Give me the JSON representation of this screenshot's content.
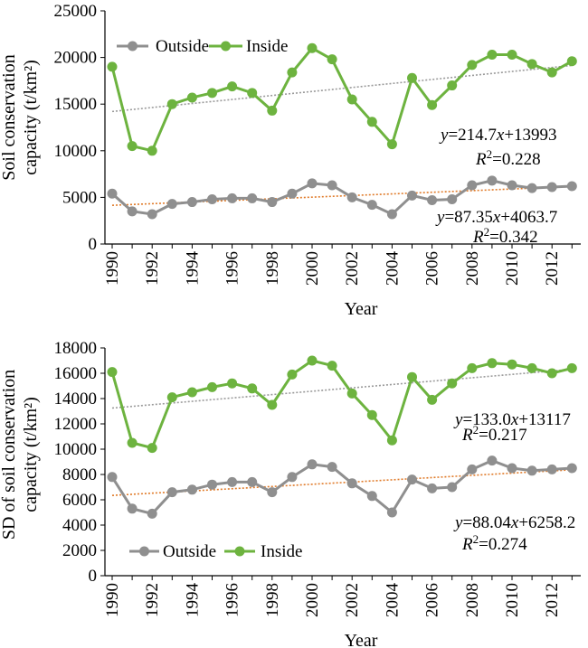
{
  "colors": {
    "outside": "#8f8f8f",
    "inside": "#6db33f",
    "trend_outside": "#e07b2a",
    "trend_inside": "#9a9a9a"
  },
  "chart_data": [
    {
      "type": "line",
      "x": [
        1990,
        1991,
        1992,
        1993,
        1994,
        1995,
        1996,
        1997,
        1998,
        1999,
        2000,
        2001,
        2002,
        2003,
        2004,
        2005,
        2006,
        2007,
        2008,
        2009,
        2010,
        2011,
        2012,
        2013
      ],
      "x_ticks": [
        "1990",
        "1992",
        "1994",
        "1996",
        "1998",
        "2000",
        "2002",
        "2004",
        "2006",
        "2008",
        "2010",
        "2012"
      ],
      "xlabel": "Year",
      "ylabel": [
        "Soil conservation",
        "capacity (t/km²)"
      ],
      "ylim": [
        0,
        25000
      ],
      "y_ticks": [
        "0",
        "5000",
        "10000",
        "15000",
        "20000",
        "25000"
      ],
      "legend_position": "top-left",
      "series": [
        {
          "name": "Outside",
          "key": "outside",
          "values": [
            5400,
            3500,
            3200,
            4300,
            4500,
            4800,
            4900,
            4900,
            4500,
            5400,
            6500,
            6300,
            5000,
            4200,
            3200,
            5200,
            4700,
            4800,
            6300,
            6800,
            6300,
            6000,
            6100,
            6200
          ],
          "trend": {
            "slope": 87.35,
            "intercept": 4063.7
          }
        },
        {
          "name": "Inside",
          "key": "inside",
          "values": [
            19000,
            10500,
            10000,
            15000,
            15700,
            16200,
            16900,
            16200,
            14300,
            18400,
            21000,
            19800,
            15500,
            13100,
            10700,
            17800,
            14900,
            17000,
            19200,
            20300,
            20300,
            19300,
            18400,
            19600
          ],
          "trend": {
            "slope": 214.7,
            "intercept": 13993
          }
        }
      ],
      "equations": [
        {
          "key": "inside",
          "eq_coef": "=214.7",
          "eq_x": "x",
          "eq_const": "+13993",
          "r2_value": "=0.228"
        },
        {
          "key": "outside",
          "eq_coef": "=87.35",
          "eq_x": "x",
          "eq_const": "+4063.7",
          "r2_value": "=0.342"
        }
      ]
    },
    {
      "type": "line",
      "x": [
        1990,
        1991,
        1992,
        1993,
        1994,
        1995,
        1996,
        1997,
        1998,
        1999,
        2000,
        2001,
        2002,
        2003,
        2004,
        2005,
        2006,
        2007,
        2008,
        2009,
        2010,
        2011,
        2012,
        2013
      ],
      "x_ticks": [
        "1990",
        "1992",
        "1994",
        "1996",
        "1998",
        "2000",
        "2002",
        "2004",
        "2006",
        "2008",
        "2010",
        "2012"
      ],
      "xlabel": "Year",
      "ylabel": [
        "SD of soil conservation",
        "capacity (t/km²)"
      ],
      "ylim": [
        0,
        18000
      ],
      "y_ticks": [
        "0",
        "2000",
        "4000",
        "6000",
        "8000",
        "10000",
        "12000",
        "14000",
        "16000",
        "18000"
      ],
      "legend_position": "bottom-left",
      "series": [
        {
          "name": "Outside",
          "key": "outside",
          "values": [
            7800,
            5300,
            4900,
            6600,
            6800,
            7200,
            7400,
            7400,
            6600,
            7800,
            8800,
            8600,
            7300,
            6300,
            5000,
            7600,
            6900,
            7000,
            8400,
            9100,
            8500,
            8300,
            8400,
            8500
          ],
          "trend": {
            "slope": 88.04,
            "intercept": 6258.2
          }
        },
        {
          "name": "Inside",
          "key": "inside",
          "values": [
            16100,
            10500,
            10100,
            14100,
            14500,
            14900,
            15200,
            14800,
            13500,
            15900,
            17000,
            16600,
            14400,
            12700,
            10700,
            15700,
            13900,
            15200,
            16400,
            16800,
            16700,
            16400,
            16000,
            16400
          ],
          "trend": {
            "slope": 133.0,
            "intercept": 13117
          }
        }
      ],
      "equations": [
        {
          "key": "inside",
          "eq_coef": "=133.0",
          "eq_x": "x",
          "eq_const": "+13117",
          "r2_value": "=0.217"
        },
        {
          "key": "outside",
          "eq_coef": "=88.04",
          "eq_x": "x",
          "eq_const": "+6258.2",
          "r2_value": "=0.274"
        }
      ]
    }
  ]
}
